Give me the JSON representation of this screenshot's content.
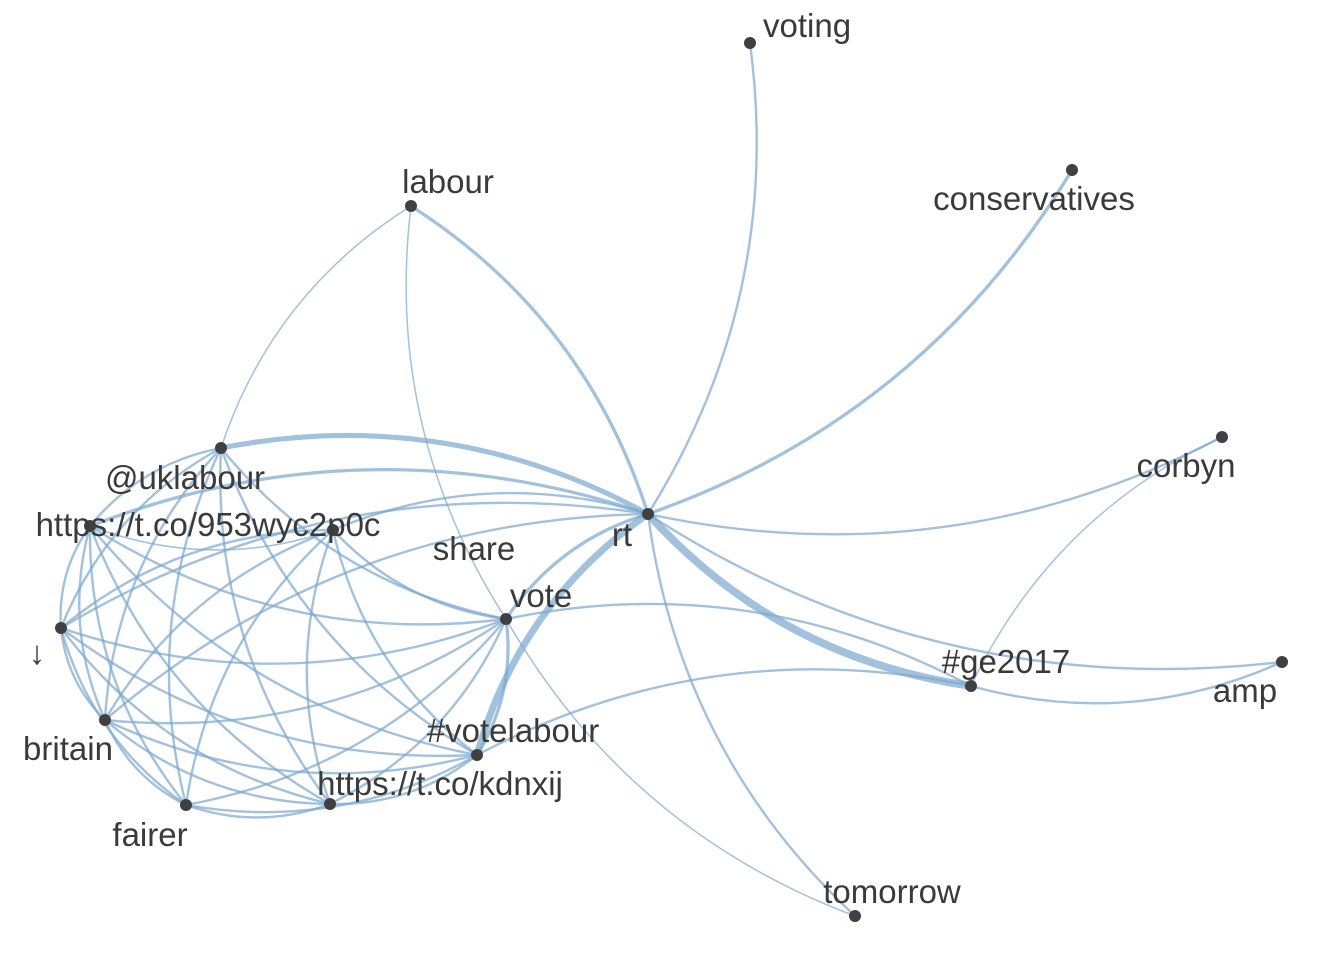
{
  "graph": {
    "edge_color": "#7aa6cf",
    "node_color": "#404040",
    "label_color": "#3a3a3a",
    "nodes": [
      {
        "id": "voting",
        "label": "voting"
      },
      {
        "id": "conservatives",
        "label": "conservatives"
      },
      {
        "id": "labour",
        "label": "labour"
      },
      {
        "id": "corbyn",
        "label": "corbyn"
      },
      {
        "id": "uklabour",
        "label": "@uklabour"
      },
      {
        "id": "url1",
        "label": "https://t.co/953wyc2p0c"
      },
      {
        "id": "share",
        "label": "share"
      },
      {
        "id": "rt",
        "label": "rt"
      },
      {
        "id": "vote",
        "label": "vote"
      },
      {
        "id": "arrow",
        "label": "↓"
      },
      {
        "id": "ge2017",
        "label": "#ge2017"
      },
      {
        "id": "amp",
        "label": "amp"
      },
      {
        "id": "britain",
        "label": "britain"
      },
      {
        "id": "votelabour",
        "label": "#votelabour"
      },
      {
        "id": "url2",
        "label": "https://t.co/kdnxij"
      },
      {
        "id": "fairer",
        "label": "fairer"
      },
      {
        "id": "tomorrow",
        "label": "tomorrow"
      }
    ],
    "edges": [
      {
        "from": "rt",
        "to": "voting",
        "weight": 2
      },
      {
        "from": "rt",
        "to": "conservatives",
        "weight": 3
      },
      {
        "from": "rt",
        "to": "labour",
        "weight": 3
      },
      {
        "from": "rt",
        "to": "corbyn",
        "weight": 2
      },
      {
        "from": "rt",
        "to": "uklabour",
        "weight": 5
      },
      {
        "from": "rt",
        "to": "url1",
        "weight": 3
      },
      {
        "from": "rt",
        "to": "share",
        "weight": 2
      },
      {
        "from": "rt",
        "to": "vote",
        "weight": 3
      },
      {
        "from": "rt",
        "to": "arrow",
        "weight": 2
      },
      {
        "from": "rt",
        "to": "ge2017",
        "weight": 8
      },
      {
        "from": "rt",
        "to": "amp",
        "weight": 2
      },
      {
        "from": "rt",
        "to": "votelabour",
        "weight": 7
      },
      {
        "from": "rt",
        "to": "tomorrow",
        "weight": 2
      },
      {
        "from": "rt",
        "to": "britain",
        "weight": 2
      },
      {
        "from": "labour",
        "to": "uklabour",
        "weight": 1
      },
      {
        "from": "labour",
        "to": "vote",
        "weight": 1
      },
      {
        "from": "corbyn",
        "to": "ge2017",
        "weight": 1
      },
      {
        "from": "ge2017",
        "to": "vote",
        "weight": 2
      },
      {
        "from": "ge2017",
        "to": "votelabour",
        "weight": 2
      },
      {
        "from": "ge2017",
        "to": "amp",
        "weight": 2
      },
      {
        "from": "vote",
        "to": "tomorrow",
        "weight": 1
      },
      {
        "from": "url1",
        "to": "share",
        "weight": 1
      },
      {
        "from": "uklabour",
        "to": "url1",
        "weight": 2
      },
      {
        "from": "uklabour",
        "to": "arrow",
        "weight": 2
      },
      {
        "from": "uklabour",
        "to": "britain",
        "weight": 2
      },
      {
        "from": "uklabour",
        "to": "fairer",
        "weight": 2
      },
      {
        "from": "uklabour",
        "to": "url2",
        "weight": 2
      },
      {
        "from": "uklabour",
        "to": "votelabour",
        "weight": 2
      },
      {
        "from": "uklabour",
        "to": "vote",
        "weight": 2
      },
      {
        "from": "url1",
        "to": "arrow",
        "weight": 2
      },
      {
        "from": "url1",
        "to": "britain",
        "weight": 2
      },
      {
        "from": "url1",
        "to": "fairer",
        "weight": 2
      },
      {
        "from": "url1",
        "to": "url2",
        "weight": 2
      },
      {
        "from": "url1",
        "to": "votelabour",
        "weight": 2
      },
      {
        "from": "url1",
        "to": "vote",
        "weight": 2
      },
      {
        "from": "share",
        "to": "arrow",
        "weight": 2
      },
      {
        "from": "share",
        "to": "britain",
        "weight": 2
      },
      {
        "from": "share",
        "to": "fairer",
        "weight": 2
      },
      {
        "from": "share",
        "to": "url2",
        "weight": 2
      },
      {
        "from": "share",
        "to": "votelabour",
        "weight": 2
      },
      {
        "from": "share",
        "to": "vote",
        "weight": 2
      },
      {
        "from": "arrow",
        "to": "britain",
        "weight": 2
      },
      {
        "from": "arrow",
        "to": "fairer",
        "weight": 2
      },
      {
        "from": "arrow",
        "to": "url2",
        "weight": 2
      },
      {
        "from": "arrow",
        "to": "votelabour",
        "weight": 2
      },
      {
        "from": "arrow",
        "to": "vote",
        "weight": 2
      },
      {
        "from": "britain",
        "to": "fairer",
        "weight": 2
      },
      {
        "from": "britain",
        "to": "url2",
        "weight": 2
      },
      {
        "from": "britain",
        "to": "votelabour",
        "weight": 2
      },
      {
        "from": "britain",
        "to": "vote",
        "weight": 2
      },
      {
        "from": "fairer",
        "to": "url2",
        "weight": 2
      },
      {
        "from": "fairer",
        "to": "votelabour",
        "weight": 2
      },
      {
        "from": "fairer",
        "to": "vote",
        "weight": 2
      },
      {
        "from": "url2",
        "to": "votelabour",
        "weight": 2
      },
      {
        "from": "url2",
        "to": "vote",
        "weight": 2
      },
      {
        "from": "votelabour",
        "to": "vote",
        "weight": 3
      }
    ]
  }
}
